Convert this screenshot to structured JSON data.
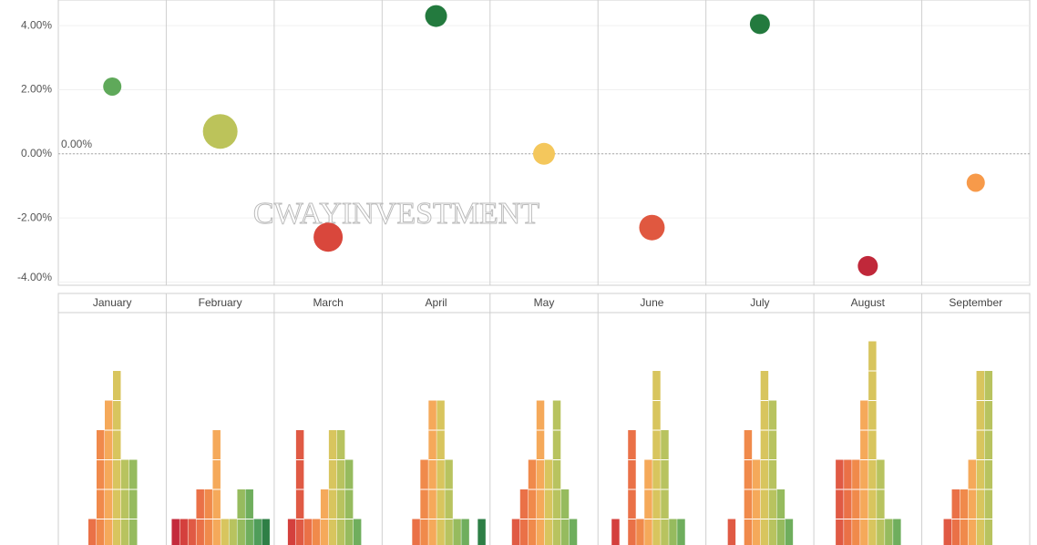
{
  "chart_data": [
    {
      "type": "scatter",
      "categories": [
        "January",
        "February",
        "March",
        "April",
        "May",
        "June",
        "July",
        "August",
        "September"
      ],
      "values": [
        2.1,
        0.7,
        -2.6,
        4.3,
        0.0,
        -2.3,
        4.05,
        -3.5,
        -0.9
      ],
      "sizes": [
        100,
        361,
        256,
        144,
        144,
        196,
        121,
        121,
        100
      ],
      "colors": [
        "#5fa95a",
        "#bcc35a",
        "#d9473c",
        "#237a3e",
        "#f4c75c",
        "#e05840",
        "#237a3e",
        "#c0283a",
        "#f79a4a"
      ],
      "ylim": [
        -4.1,
        4.8
      ],
      "yticks": [
        {
          "value": -4,
          "label": "-4.00%"
        },
        {
          "value": -2,
          "label": "-2.00%"
        },
        {
          "value": 0,
          "label": "0.00%"
        },
        {
          "value": 2,
          "label": "2.00%"
        },
        {
          "value": 4,
          "label": "4.00%"
        }
      ],
      "grid": true,
      "reference_line": {
        "value": 0,
        "label": "0.00%"
      },
      "watermark": "CWAYINVESTMENT"
    },
    {
      "type": "histogram",
      "bin_colors": [
        "#c42a3c",
        "#d4403d",
        "#e05a44",
        "#ea7147",
        "#f08a4b",
        "#f5a95a",
        "#d8c55e",
        "#b8c35f",
        "#96bb5e",
        "#6fae5d",
        "#4f9d5a",
        "#2e7f46"
      ],
      "counts": [
        [
          0,
          0,
          0,
          1,
          4,
          5,
          6,
          3,
          3,
          0,
          0,
          0
        ],
        [
          1,
          1,
          1,
          2,
          2,
          4,
          1,
          1,
          2,
          2,
          1,
          1
        ],
        [
          0,
          1,
          4,
          1,
          1,
          2,
          4,
          4,
          3,
          1,
          0,
          0
        ],
        [
          0,
          0,
          0,
          1,
          3,
          5,
          5,
          3,
          1,
          1,
          0,
          1
        ],
        [
          0,
          0,
          1,
          2,
          3,
          5,
          3,
          5,
          2,
          1,
          0,
          0
        ],
        [
          0,
          1,
          0,
          4,
          1,
          3,
          6,
          4,
          1,
          1,
          0,
          0
        ],
        [
          0,
          0,
          1,
          0,
          4,
          3,
          6,
          5,
          2,
          1,
          0,
          0
        ],
        [
          0,
          0,
          3,
          3,
          3,
          5,
          7,
          3,
          1,
          1,
          0,
          0
        ],
        [
          0,
          0,
          1,
          2,
          2,
          3,
          6,
          6,
          0,
          0,
          0,
          0
        ]
      ]
    }
  ]
}
